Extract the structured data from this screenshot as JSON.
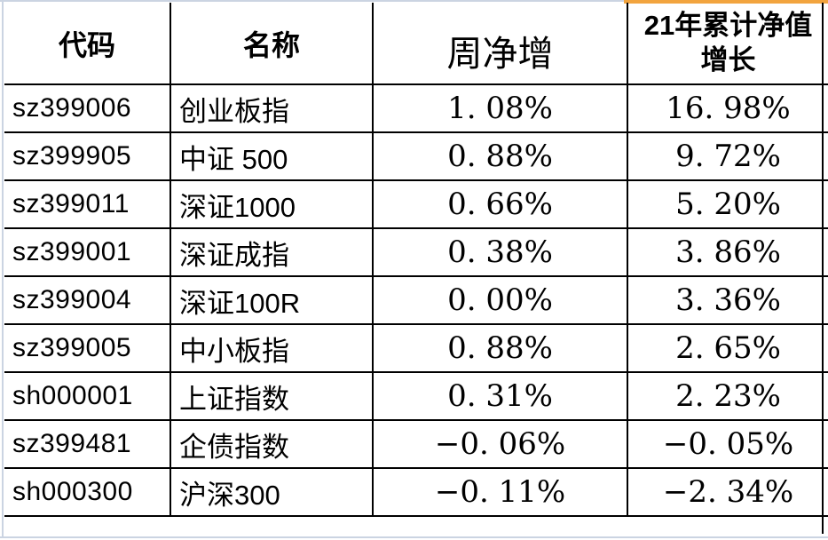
{
  "table": {
    "columns": [
      {
        "key": "code",
        "label": "代码"
      },
      {
        "key": "name",
        "label": "名称"
      },
      {
        "key": "week",
        "label": "周净增"
      },
      {
        "key": "ytd",
        "label": "21年累计净值增长",
        "label_wrapped": "21年累计净值\n增长"
      }
    ],
    "rows": [
      {
        "code": "sz399006",
        "name": "创业板指",
        "week": "1. 08%",
        "ytd": "16. 98%"
      },
      {
        "code": "sz399905",
        "name": "中证 500",
        "week": "0. 88%",
        "ytd": "9. 72%"
      },
      {
        "code": "sz399011",
        "name": "深证1000",
        "week": "0. 66%",
        "ytd": "5. 20%"
      },
      {
        "code": "sz399001",
        "name": "深证成指",
        "week": "0. 38%",
        "ytd": "3. 86%"
      },
      {
        "code": "sz399004",
        "name": "深证100R",
        "week": "0. 00%",
        "ytd": "3. 36%"
      },
      {
        "code": "sz399005",
        "name": "中小板指",
        "week": "0. 88%",
        "ytd": "2. 65%"
      },
      {
        "code": "sh000001",
        "name": "上证指数",
        "week": "0. 31%",
        "ytd": "2. 23%"
      },
      {
        "code": "sz399481",
        "name": "企债指数",
        "week": "−0. 06%",
        "ytd": "−0. 05%"
      },
      {
        "code": "sh000300",
        "name": "沪深300",
        "week": "−0. 11%",
        "ytd": "−2. 34%"
      }
    ]
  },
  "colors": {
    "accent_orange": "#f2a43e",
    "worksheet_gridline": "#cbd4e2",
    "table_border": "#000000",
    "text": "#000000",
    "background": "#ffffff"
  }
}
